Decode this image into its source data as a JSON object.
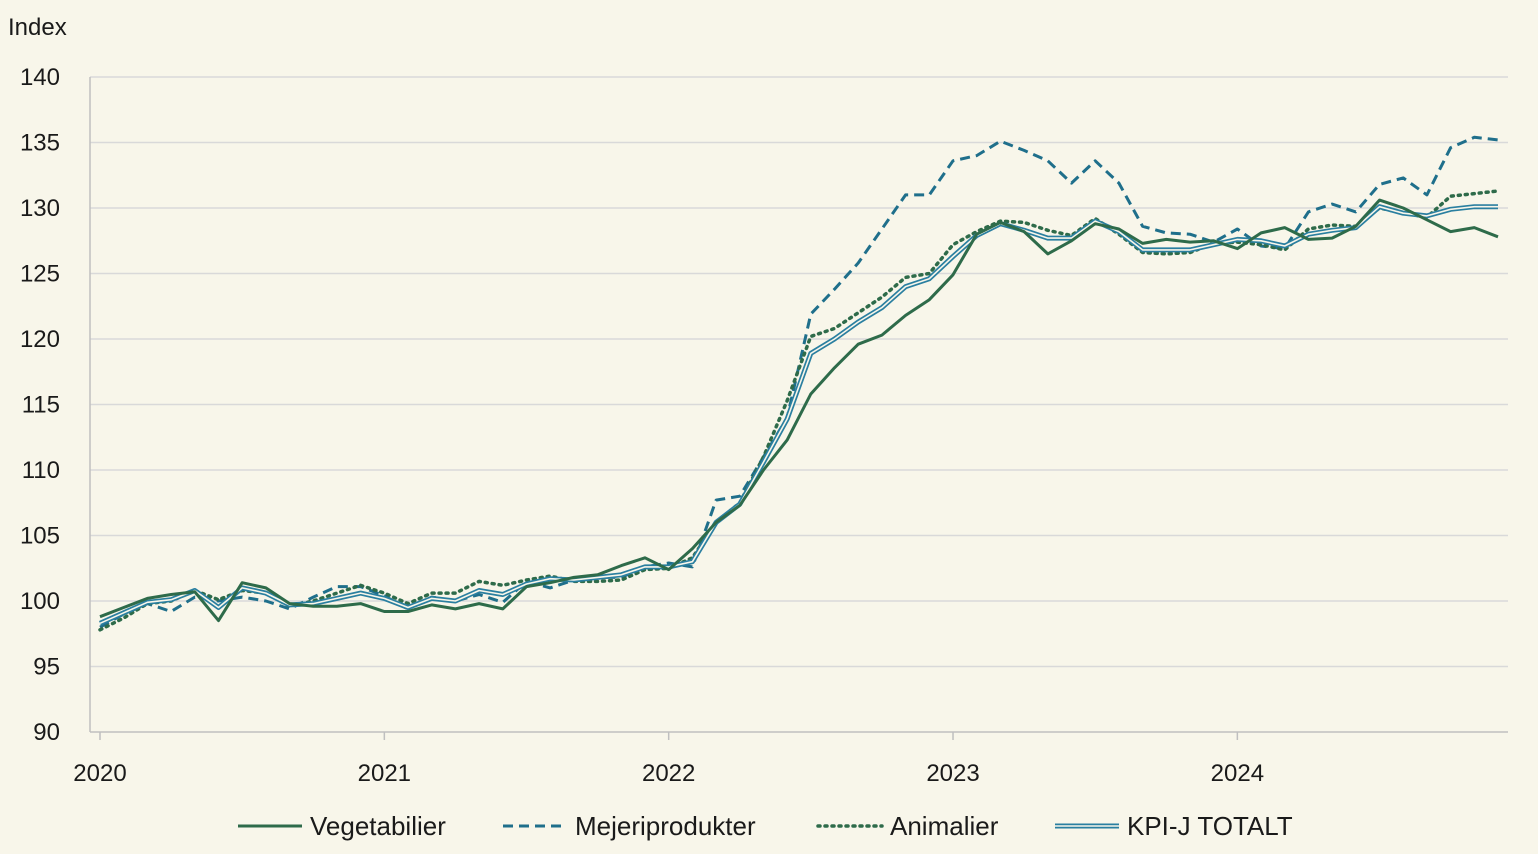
{
  "chart_data": {
    "type": "line",
    "ylabel": "Index",
    "ylim": [
      90,
      140
    ],
    "yticks": [
      90,
      95,
      100,
      105,
      110,
      115,
      120,
      125,
      130,
      135,
      140
    ],
    "xticks": [
      "2020",
      "2021",
      "2022",
      "2023",
      "2024"
    ],
    "grid": true,
    "legend_position": "bottom",
    "colors": {
      "background": "#f8f6ea",
      "vegetabilier": "#2e6b4a",
      "mejeri": "#1f6f8b",
      "animalier": "#2e6b4a",
      "kpi": "#2a7fa0"
    },
    "series": [
      {
        "name": "Vegetabilier",
        "style": "solid",
        "values": [
          98.8,
          99.5,
          100.2,
          100.5,
          100.7,
          98.5,
          101.4,
          101.0,
          99.8,
          99.6,
          99.6,
          99.8,
          99.2,
          99.2,
          99.7,
          99.4,
          99.8,
          99.4,
          101.1,
          101.4,
          101.8,
          102.0,
          102.7,
          103.3,
          102.4,
          104.0,
          106.0,
          107.3,
          110.0,
          112.3,
          115.8,
          117.8,
          119.6,
          120.3,
          121.8,
          123.0,
          124.9,
          128.0,
          128.9,
          128.2,
          126.5,
          127.5,
          128.8,
          128.4,
          127.3,
          127.6,
          127.4,
          127.5,
          126.9,
          128.1,
          128.5,
          127.6,
          127.7,
          128.6,
          130.6,
          130.0,
          129.1,
          128.2,
          128.5,
          127.8
        ]
      },
      {
        "name": "Mejeriprodukter",
        "style": "dashed",
        "values": [
          98.0,
          99.0,
          99.8,
          99.2,
          100.3,
          100.0,
          100.3,
          100.0,
          99.4,
          100.3,
          101.1,
          101.1,
          100.4,
          99.4,
          100.3,
          100.0,
          100.5,
          99.9,
          101.5,
          101.0,
          101.6,
          101.8,
          101.8,
          102.6,
          102.9,
          102.6,
          107.7,
          108.0,
          111.0,
          114.0,
          121.9,
          123.8,
          125.8,
          128.4,
          131.0,
          131.0,
          133.6,
          134.0,
          135.1,
          134.4,
          133.6,
          131.9,
          133.6,
          131.9,
          128.6,
          128.1,
          128.0,
          127.4,
          128.4,
          127.1,
          126.9,
          129.7,
          130.3,
          129.7,
          131.8,
          132.3,
          131.0,
          134.6,
          135.4,
          135.2
        ]
      },
      {
        "name": "Animalier",
        "style": "dotted",
        "values": [
          97.8,
          98.7,
          99.8,
          100.0,
          100.8,
          100.1,
          100.8,
          100.6,
          99.6,
          100.0,
          100.6,
          101.2,
          100.6,
          99.8,
          100.6,
          100.6,
          101.5,
          101.2,
          101.6,
          101.9,
          101.5,
          101.5,
          101.6,
          102.4,
          102.5,
          103.3,
          106.0,
          107.5,
          111.0,
          115.3,
          120.2,
          120.8,
          122.0,
          123.2,
          124.7,
          125.0,
          127.2,
          128.2,
          129.0,
          128.9,
          128.3,
          127.9,
          129.2,
          128.0,
          126.6,
          126.5,
          126.6,
          127.3,
          127.4,
          127.2,
          126.8,
          128.4,
          128.7,
          128.6,
          130.0,
          129.6,
          129.3,
          130.9,
          131.1,
          131.3
        ]
      },
      {
        "name": "KPI-J TOTALT",
        "style": "double",
        "values": [
          98.3,
          99.1,
          99.9,
          100.1,
          100.8,
          99.5,
          101.0,
          100.6,
          99.7,
          99.8,
          100.2,
          100.6,
          100.2,
          99.5,
          100.2,
          100.0,
          100.8,
          100.5,
          101.3,
          101.7,
          101.6,
          101.8,
          102.0,
          102.6,
          102.6,
          103.0,
          106.0,
          107.4,
          110.6,
          113.9,
          118.9,
          120.0,
          121.3,
          122.4,
          124.0,
          124.6,
          126.3,
          127.9,
          128.8,
          128.3,
          127.7,
          127.7,
          129.0,
          128.2,
          126.8,
          126.8,
          126.8,
          127.2,
          127.6,
          127.5,
          127.1,
          128.0,
          128.3,
          128.5,
          130.1,
          129.6,
          129.4,
          129.9,
          130.1,
          130.1
        ]
      }
    ]
  }
}
